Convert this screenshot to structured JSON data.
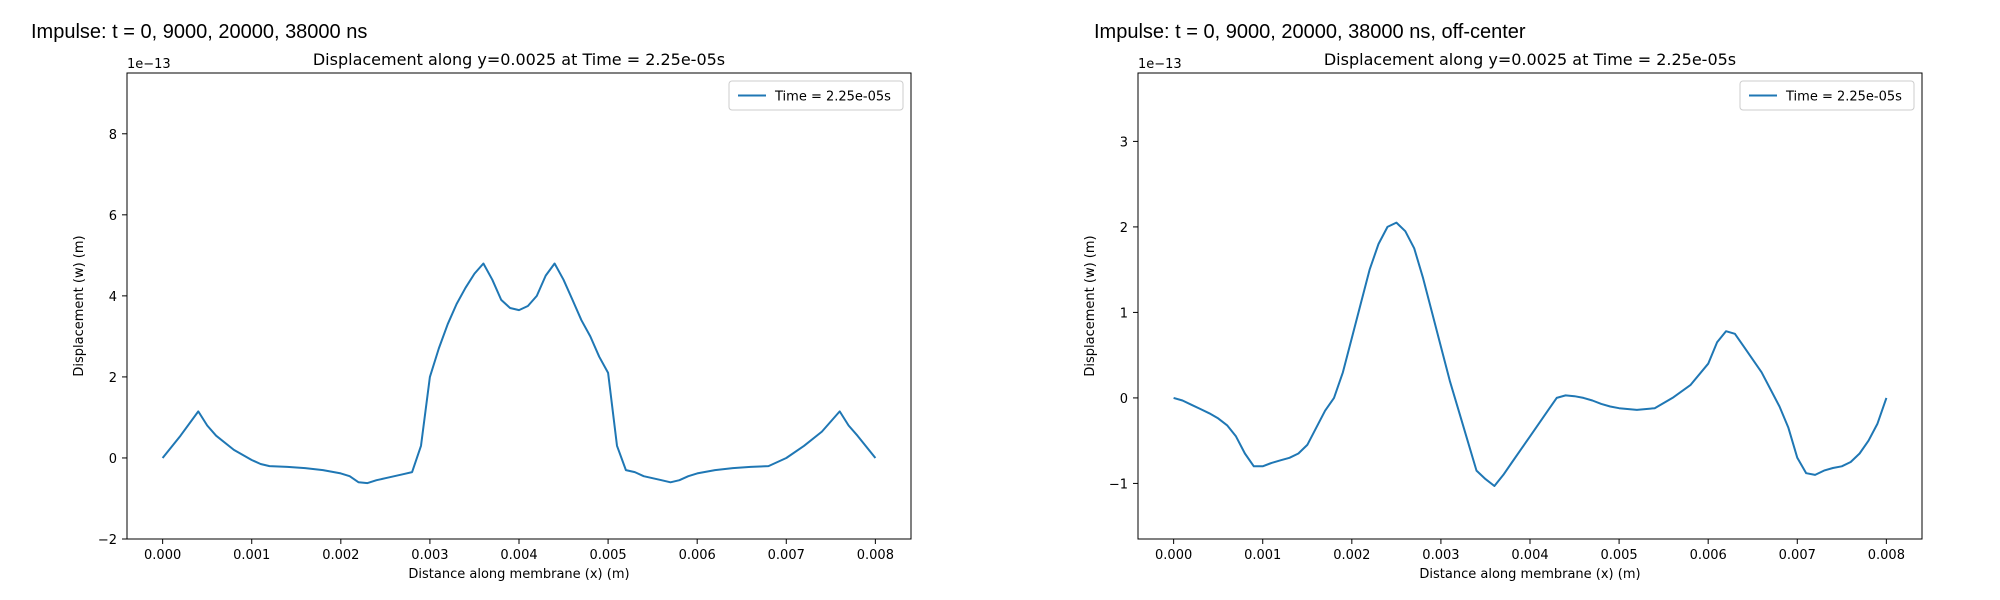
{
  "figure": {
    "left_title": "Impulse: t = 0, 9000, 20000, 38000 ns",
    "right_title": "Impulse: t = 0, 9000, 20000, 38000 ns, off-center"
  },
  "chart_data": [
    {
      "type": "line",
      "title": "Displacement along y=0.0025 at Time = 2.25e-05s",
      "xlabel": "Distance along membrane (x) (m)",
      "ylabel": "Displacement (w) (m)",
      "offset_label": "1e−13",
      "xlim": [
        -0.0004,
        0.0084
      ],
      "ylim": [
        -2.0,
        9.5
      ],
      "xticks": [
        0,
        0.001,
        0.002,
        0.003,
        0.004,
        0.005,
        0.006,
        0.007,
        0.008
      ],
      "xtick_labels": [
        "0.000",
        "0.001",
        "0.002",
        "0.003",
        "0.004",
        "0.005",
        "0.006",
        "0.007",
        "0.008"
      ],
      "yticks": [
        -2,
        0,
        2,
        4,
        6,
        8
      ],
      "ytick_labels": [
        "−2",
        "0",
        "2",
        "4",
        "6",
        "8"
      ],
      "legend_position": "top-right",
      "grid": false,
      "series": [
        {
          "name": "Time = 2.25e-05s",
          "color": "#1f77b4",
          "x": [
            0,
            0.0002,
            0.0004,
            0.0005,
            0.0006,
            0.0008,
            0.001,
            0.0011,
            0.0012,
            0.0014,
            0.0016,
            0.0018,
            0.002,
            0.0021,
            0.0022,
            0.0023,
            0.0024,
            0.0025,
            0.0026,
            0.0027,
            0.0028,
            0.0029,
            0.003,
            0.0031,
            0.0032,
            0.0033,
            0.0034,
            0.0035,
            0.0036,
            0.0037,
            0.0038,
            0.0039,
            0.004,
            0.0041,
            0.0042,
            0.0043,
            0.0044,
            0.0045,
            0.0046,
            0.0047,
            0.0048,
            0.0049,
            0.005,
            0.0051,
            0.0052,
            0.0053,
            0.0054,
            0.0055,
            0.0056,
            0.0057,
            0.0058,
            0.0059,
            0.006,
            0.0062,
            0.0064,
            0.0066,
            0.0068,
            0.007,
            0.0072,
            0.0074,
            0.0076,
            0.0077,
            0.0078,
            0.008
          ],
          "y": [
            0,
            0.55,
            1.15,
            0.8,
            0.55,
            0.2,
            -0.05,
            -0.15,
            -0.2,
            -0.22,
            -0.25,
            -0.3,
            -0.38,
            -0.45,
            -0.6,
            -0.62,
            -0.55,
            -0.5,
            -0.45,
            -0.4,
            -0.35,
            0.3,
            2.0,
            2.7,
            3.3,
            3.8,
            4.2,
            4.55,
            4.8,
            4.4,
            3.9,
            3.7,
            3.65,
            3.75,
            4.0,
            4.5,
            4.8,
            4.4,
            3.9,
            3.4,
            3.0,
            2.5,
            2.1,
            0.3,
            -0.3,
            -0.35,
            -0.45,
            -0.5,
            -0.55,
            -0.6,
            -0.55,
            -0.45,
            -0.38,
            -0.3,
            -0.25,
            -0.22,
            -0.2,
            0.0,
            0.3,
            0.65,
            1.15,
            0.8,
            0.55,
            0
          ]
        }
      ]
    },
    {
      "type": "line",
      "title": "Displacement along y=0.0025 at Time = 2.25e-05s",
      "xlabel": "Distance along membrane (x) (m)",
      "ylabel": "Displacement (w) (m)",
      "offset_label": "1e−13",
      "xlim": [
        -0.0004,
        0.0084
      ],
      "ylim": [
        -1.65,
        3.8
      ],
      "xticks": [
        0,
        0.001,
        0.002,
        0.003,
        0.004,
        0.005,
        0.006,
        0.007,
        0.008
      ],
      "xtick_labels": [
        "0.000",
        "0.001",
        "0.002",
        "0.003",
        "0.004",
        "0.005",
        "0.006",
        "0.007",
        "0.008"
      ],
      "yticks": [
        -1,
        0,
        1,
        2,
        3
      ],
      "ytick_labels": [
        "−1",
        "0",
        "1",
        "2",
        "3"
      ],
      "legend_position": "top-right",
      "grid": false,
      "series": [
        {
          "name": "Time = 2.25e-05s",
          "color": "#1f77b4",
          "x": [
            0,
            0.0001,
            0.0002,
            0.0003,
            0.0004,
            0.0005,
            0.0006,
            0.0007,
            0.0008,
            0.0009,
            0.001,
            0.0011,
            0.0012,
            0.0013,
            0.0014,
            0.0015,
            0.0016,
            0.0017,
            0.0018,
            0.0019,
            0.002,
            0.0021,
            0.0022,
            0.0023,
            0.0024,
            0.0025,
            0.0026,
            0.0027,
            0.0028,
            0.0029,
            0.003,
            0.0031,
            0.0032,
            0.0033,
            0.0034,
            0.0035,
            0.0036,
            0.0037,
            0.0038,
            0.0039,
            0.004,
            0.0041,
            0.0042,
            0.0043,
            0.0044,
            0.0045,
            0.0046,
            0.0047,
            0.0048,
            0.0049,
            0.005,
            0.0052,
            0.0054,
            0.0056,
            0.0058,
            0.006,
            0.0061,
            0.0062,
            0.0063,
            0.0064,
            0.0066,
            0.0068,
            0.0069,
            0.007,
            0.0071,
            0.0072,
            0.0073,
            0.0074,
            0.0075,
            0.0076,
            0.0077,
            0.0078,
            0.0079,
            0.008
          ],
          "y": [
            0,
            -0.03,
            -0.08,
            -0.13,
            -0.18,
            -0.24,
            -0.32,
            -0.45,
            -0.65,
            -0.8,
            -0.8,
            -0.76,
            -0.73,
            -0.7,
            -0.65,
            -0.55,
            -0.35,
            -0.15,
            0.0,
            0.3,
            0.7,
            1.1,
            1.5,
            1.8,
            2.0,
            2.05,
            1.95,
            1.75,
            1.4,
            1.0,
            0.6,
            0.2,
            -0.15,
            -0.5,
            -0.85,
            -0.95,
            -1.03,
            -0.9,
            -0.75,
            -0.6,
            -0.45,
            -0.3,
            -0.15,
            0.0,
            0.03,
            0.02,
            0.0,
            -0.03,
            -0.07,
            -0.1,
            -0.12,
            -0.14,
            -0.12,
            0.0,
            0.15,
            0.4,
            0.65,
            0.78,
            0.75,
            0.6,
            0.3,
            -0.1,
            -0.35,
            -0.7,
            -0.88,
            -0.9,
            -0.85,
            -0.82,
            -0.8,
            -0.75,
            -0.65,
            -0.5,
            -0.3,
            0
          ]
        }
      ]
    }
  ]
}
